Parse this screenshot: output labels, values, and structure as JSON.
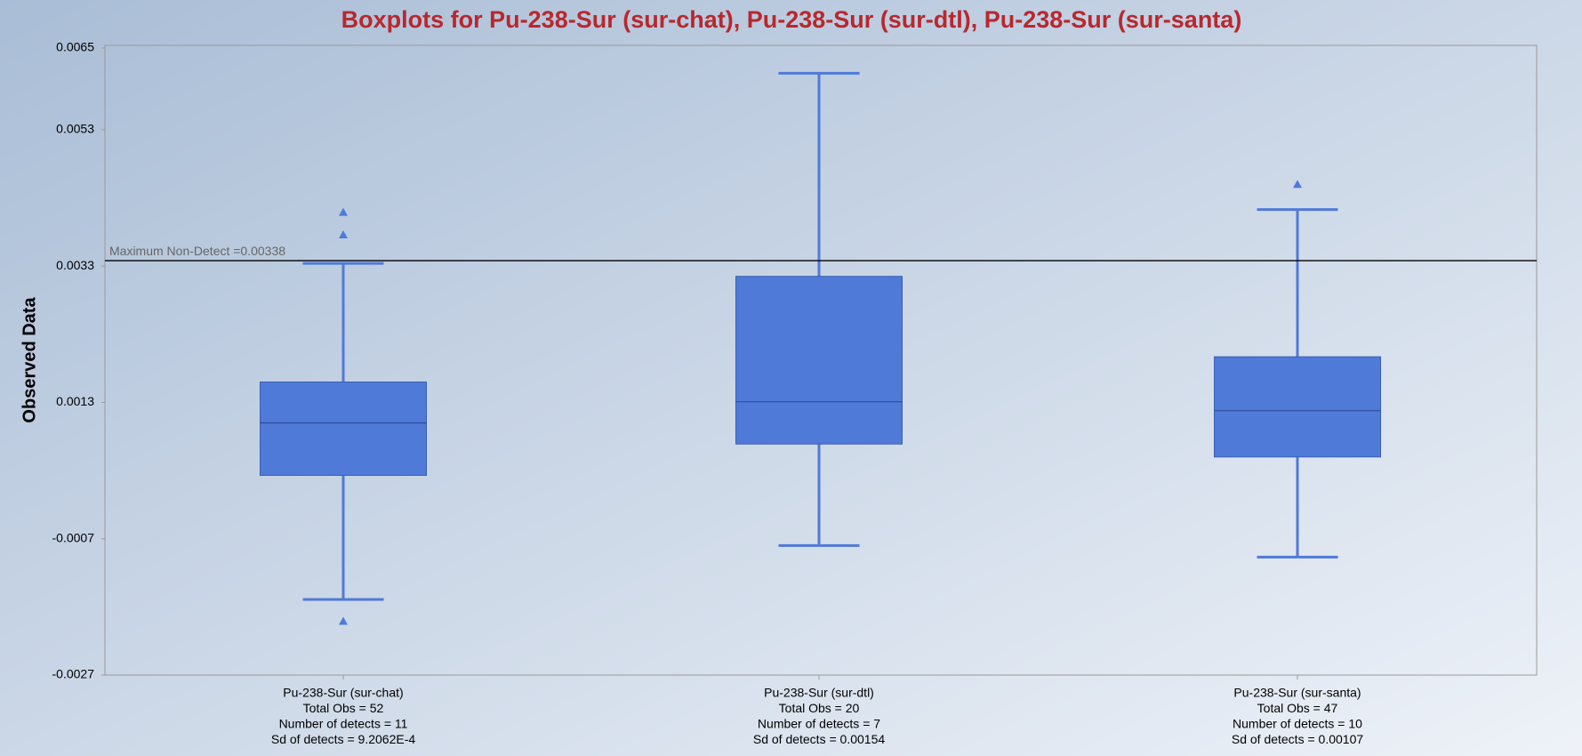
{
  "chart_data": {
    "type": "box",
    "title": "Boxplots for Pu-238-Sur (sur-chat), Pu-238-Sur (sur-dtl), Pu-238-Sur (sur-santa)",
    "ylabel": "Observed Data",
    "categories": [
      [
        "Pu-238-Sur (sur-chat)",
        "Total Obs = 52",
        "Number of detects = 11",
        "Sd of detects = 9.2062E-4"
      ],
      [
        "Pu-238-Sur (sur-dtl)",
        "Total Obs = 20",
        "Number of detects = 7",
        "Sd of detects = 0.00154"
      ],
      [
        "Pu-238-Sur (sur-santa)",
        "Total Obs = 47",
        "Number of detects = 10",
        "Sd of detects = 0.00107"
      ]
    ],
    "color": "#4f7ad8",
    "boxes": [
      {
        "whislo": -0.00159,
        "q1": 0.00023,
        "med": 0.001,
        "q3": 0.0016,
        "whishi": 0.00334,
        "fliers": [
          0.00409,
          0.00376,
          -0.00191
        ]
      },
      {
        "whislo": -0.0008,
        "q1": 0.00069,
        "med": 0.00131,
        "q3": 0.00315,
        "whishi": 0.00613,
        "fliers": []
      },
      {
        "whislo": -0.00097,
        "q1": 0.0005,
        "med": 0.00118,
        "q3": 0.00197,
        "whishi": 0.00413,
        "fliers": [
          0.0045
        ]
      }
    ],
    "reference_line": {
      "value": 0.00338,
      "label": "Maximum Non-Detect =0.00338"
    },
    "ylim": [
      -0.0027,
      0.0065
    ],
    "yticks": [
      -0.0027,
      -0.0007,
      0.0013,
      0.0033,
      0.0053,
      0.0065
    ]
  }
}
